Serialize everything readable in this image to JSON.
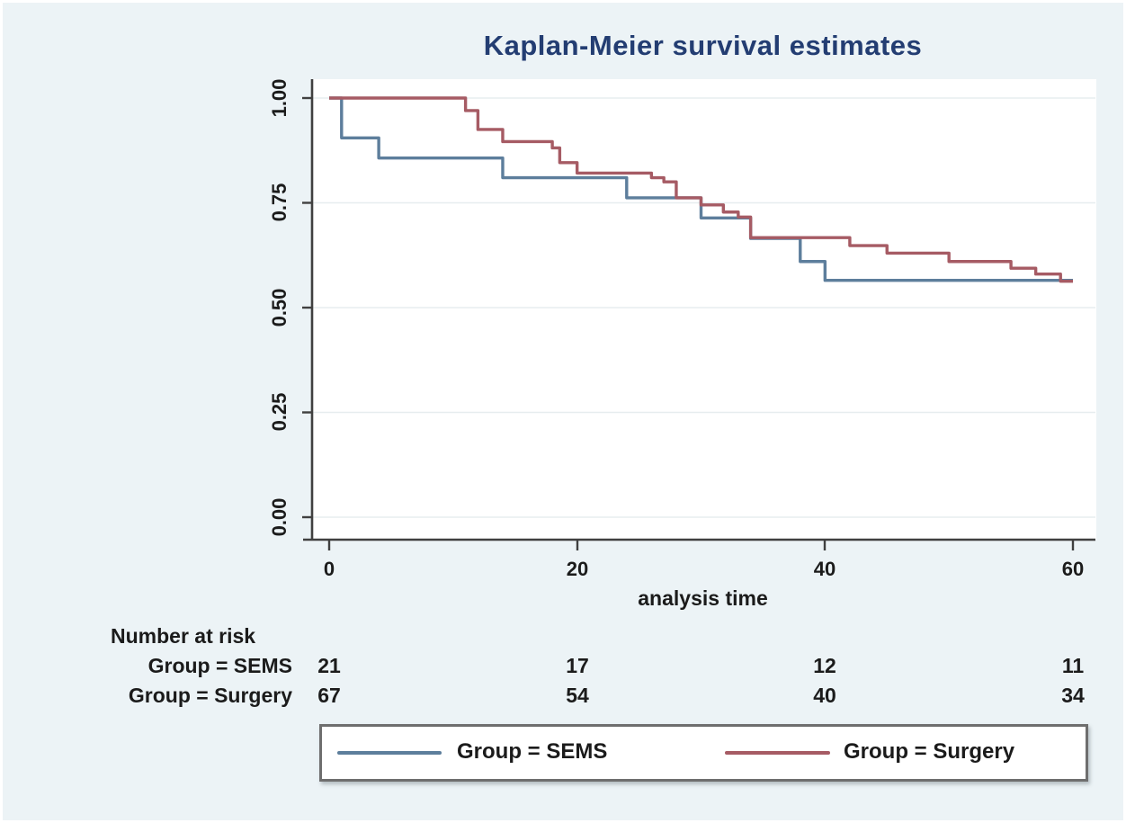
{
  "figure": {
    "title": "Kaplan-Meier survival estimates",
    "xlabel": "analysis time",
    "y_ticks": [
      "1.00",
      "0.75",
      "0.50",
      "0.25",
      "0.00"
    ],
    "x_ticks": [
      "0",
      "20",
      "40",
      "60"
    ]
  },
  "risk_table": {
    "heading": "Number at risk",
    "rows": [
      {
        "label": "Group = SEMS",
        "values": [
          "21",
          "17",
          "12",
          "11"
        ]
      },
      {
        "label": "Group = Surgery",
        "values": [
          "67",
          "54",
          "40",
          "34"
        ]
      }
    ]
  },
  "legend": {
    "items": [
      {
        "label": "Group = SEMS",
        "color": "#5d7e9c"
      },
      {
        "label": "Group = Surgery",
        "color": "#a65b64"
      }
    ]
  },
  "colors": {
    "canvas_background": "#ecf3f6",
    "plot_background": "#ffffff",
    "title_navy": "#233d72",
    "axis": "#404040",
    "sems_blue": "#5d7e9c",
    "surgery_red": "#a65b64"
  },
  "chart_data": {
    "type": "line",
    "subtype": "kaplan-meier-step",
    "title": "Kaplan-Meier survival estimates",
    "xlabel": "analysis time",
    "ylabel": "",
    "xlim": [
      0,
      60
    ],
    "ylim": [
      0.0,
      1.0
    ],
    "x_ticks": [
      0,
      20,
      40,
      60
    ],
    "y_ticks": [
      0.0,
      0.25,
      0.5,
      0.75,
      1.0
    ],
    "grid": "faint-horizontal",
    "legend_position": "bottom-outside",
    "series": [
      {
        "name": "Group = SEMS",
        "color": "#5d7e9c",
        "end_t": 60,
        "steps": [
          [
            0,
            1.0
          ],
          [
            1,
            0.905
          ],
          [
            4,
            0.857
          ],
          [
            14,
            0.81
          ],
          [
            24,
            0.762
          ],
          [
            30,
            0.714
          ],
          [
            34,
            0.665
          ],
          [
            38,
            0.61
          ],
          [
            40,
            0.565
          ]
        ]
      },
      {
        "name": "Group = Surgery",
        "color": "#a65b64",
        "end_t": 60,
        "steps": [
          [
            0,
            1.0
          ],
          [
            11,
            0.97
          ],
          [
            12,
            0.925
          ],
          [
            14,
            0.896
          ],
          [
            18,
            0.881
          ],
          [
            18.6,
            0.846
          ],
          [
            20,
            0.821
          ],
          [
            26,
            0.81
          ],
          [
            27,
            0.8
          ],
          [
            28,
            0.762
          ],
          [
            30,
            0.745
          ],
          [
            31.8,
            0.728
          ],
          [
            33,
            0.716
          ],
          [
            34,
            0.667
          ],
          [
            42,
            0.648
          ],
          [
            45,
            0.63
          ],
          [
            50,
            0.61
          ],
          [
            55,
            0.594
          ],
          [
            57,
            0.58
          ],
          [
            59,
            0.563
          ]
        ]
      }
    ],
    "number_at_risk": {
      "times": [
        0,
        20,
        40,
        60
      ],
      "groups": [
        {
          "name": "Group = SEMS",
          "counts": [
            21,
            17,
            12,
            11
          ]
        },
        {
          "name": "Group = Surgery",
          "counts": [
            67,
            54,
            40,
            34
          ]
        }
      ]
    }
  }
}
